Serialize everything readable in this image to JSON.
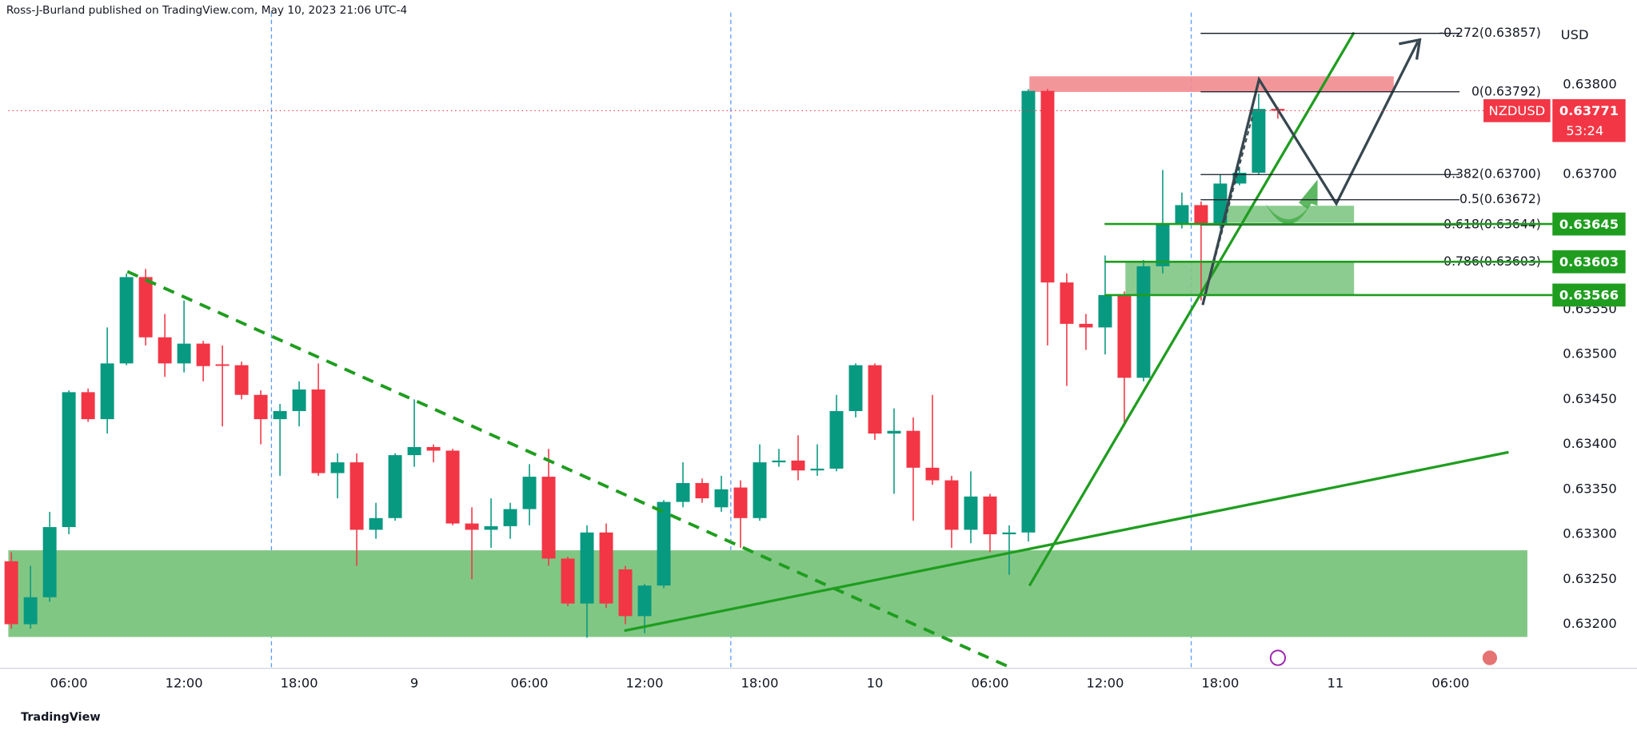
{
  "header": {
    "byline": "Ross-J-Burland published on TradingView.com, May 10, 2023 21:06 UTC-4",
    "brand": "TradingView"
  },
  "chart_data": {
    "type": "candlestick",
    "currency": "USD",
    "x": [
      3,
      4,
      5,
      6,
      7,
      8,
      9,
      10,
      11,
      12,
      13,
      14,
      15,
      16,
      17,
      18,
      19,
      20,
      21,
      22,
      23,
      24,
      25,
      26,
      27,
      28,
      29,
      30,
      31,
      32,
      33,
      34,
      35,
      36,
      37,
      38,
      39,
      40,
      41,
      42,
      43,
      44,
      45,
      46,
      47,
      48,
      49,
      50,
      51,
      52,
      53,
      54,
      55,
      56,
      57,
      58,
      59,
      60,
      61,
      62,
      63,
      64,
      65,
      66,
      67,
      68,
      69
    ],
    "open": [
      0.6327,
      0.632,
      0.6323,
      0.63308,
      0.63458,
      0.63428,
      0.6349,
      0.63586,
      0.63519,
      0.6349,
      0.63512,
      0.63489,
      0.63488,
      0.63455,
      0.63428,
      0.63437,
      0.63461,
      0.63368,
      0.6338,
      0.63305,
      0.63318,
      0.63388,
      0.63397,
      0.63393,
      0.63312,
      0.63305,
      0.63309,
      0.63328,
      0.63364,
      0.63273,
      0.63223,
      0.63302,
      0.63261,
      0.63209,
      0.63243,
      0.63336,
      0.63357,
      0.6333,
      0.63352,
      0.63318,
      0.6338,
      0.63382,
      0.63371,
      0.63373,
      0.63437,
      0.63488,
      0.63412,
      0.63415,
      0.63374,
      0.6336,
      0.63305,
      0.63342,
      0.633,
      0.63302,
      0.63793,
      0.6358,
      0.63534,
      0.6353,
      0.63566,
      0.63474,
      0.63598,
      0.63645,
      0.63666,
      0.63644,
      0.6369,
      0.63702,
      0.63773
    ],
    "high": [
      0.6328,
      0.63265,
      0.63325,
      0.6346,
      0.63462,
      0.6353,
      0.6359,
      0.63595,
      0.63545,
      0.6356,
      0.63515,
      0.6351,
      0.63492,
      0.6346,
      0.63445,
      0.6347,
      0.6349,
      0.6339,
      0.6339,
      0.63335,
      0.6339,
      0.6345,
      0.634,
      0.63395,
      0.6333,
      0.6334,
      0.63335,
      0.63378,
      0.63395,
      0.63275,
      0.6331,
      0.63312,
      0.63265,
      0.63245,
      0.63338,
      0.6338,
      0.63362,
      0.63365,
      0.6336,
      0.634,
      0.63395,
      0.6341,
      0.634,
      0.63455,
      0.6349,
      0.6349,
      0.6344,
      0.6343,
      0.63455,
      0.63365,
      0.6337,
      0.63345,
      0.6331,
      0.63795,
      0.63795,
      0.6359,
      0.63545,
      0.6361,
      0.6357,
      0.63605,
      0.63705,
      0.6368,
      0.6367,
      0.637,
      0.63708,
      0.6379,
      0.63775
    ],
    "low": [
      0.63195,
      0.63195,
      0.63225,
      0.633,
      0.63425,
      0.63412,
      0.63488,
      0.6351,
      0.63475,
      0.6348,
      0.6347,
      0.6342,
      0.6345,
      0.634,
      0.63365,
      0.6342,
      0.63365,
      0.6334,
      0.63265,
      0.63295,
      0.63315,
      0.63375,
      0.6338,
      0.6331,
      0.6325,
      0.63285,
      0.63295,
      0.6331,
      0.63265,
      0.6322,
      0.63185,
      0.63218,
      0.632,
      0.6319,
      0.6324,
      0.6333,
      0.63335,
      0.63325,
      0.63285,
      0.63315,
      0.63375,
      0.6336,
      0.63365,
      0.6337,
      0.6343,
      0.63405,
      0.63345,
      0.63315,
      0.63355,
      0.63285,
      0.6329,
      0.6328,
      0.63255,
      0.63292,
      0.6351,
      0.63465,
      0.63505,
      0.635,
      0.6342,
      0.6347,
      0.6359,
      0.6364,
      0.6356,
      0.6364,
      0.63688,
      0.637,
      0.63762
    ],
    "close": [
      0.632,
      0.6323,
      0.63308,
      0.63458,
      0.63428,
      0.6349,
      0.63586,
      0.63519,
      0.6349,
      0.63512,
      0.63487,
      0.63488,
      0.63455,
      0.63428,
      0.63437,
      0.63461,
      0.63368,
      0.6338,
      0.63305,
      0.63318,
      0.63388,
      0.63397,
      0.63393,
      0.63312,
      0.63305,
      0.63309,
      0.63328,
      0.63364,
      0.63273,
      0.63223,
      0.63302,
      0.63223,
      0.63209,
      0.63243,
      0.63336,
      0.63357,
      0.6334,
      0.6335,
      0.63318,
      0.6338,
      0.63382,
      0.63371,
      0.63373,
      0.63437,
      0.63488,
      0.63412,
      0.63415,
      0.63374,
      0.6336,
      0.63305,
      0.63342,
      0.633,
      0.63302,
      0.63793,
      0.6358,
      0.63534,
      0.6353,
      0.63566,
      0.63474,
      0.63598,
      0.63645,
      0.63666,
      0.63644,
      0.6369,
      0.63702,
      0.63773,
      0.63771
    ],
    "up_color": "#089981",
    "down_color": "#f23645",
    "xlim": [
      2.41,
      83.2
    ],
    "ylim": [
      0.63151,
      0.63894
    ],
    "xticks": [
      {
        "value": 6,
        "label": "06:00"
      },
      {
        "value": 12,
        "label": "12:00"
      },
      {
        "value": 18,
        "label": "18:00"
      },
      {
        "value": 24,
        "label": "9"
      },
      {
        "value": 30,
        "label": "06:00"
      },
      {
        "value": 36,
        "label": "12:00"
      },
      {
        "value": 42,
        "label": "18:00"
      },
      {
        "value": 48,
        "label": "10"
      },
      {
        "value": 54,
        "label": "06:00"
      },
      {
        "value": 60,
        "label": "12:00"
      },
      {
        "value": 66,
        "label": "18:00"
      },
      {
        "value": 72,
        "label": "11"
      },
      {
        "value": 78,
        "label": "06:00"
      }
    ],
    "yticks": [
      {
        "value": 0.632,
        "label": "0.63200"
      },
      {
        "value": 0.6325,
        "label": "0.63250"
      },
      {
        "value": 0.633,
        "label": "0.63300"
      },
      {
        "value": 0.6335,
        "label": "0.63350"
      },
      {
        "value": 0.634,
        "label": "0.63400"
      },
      {
        "value": 0.6345,
        "label": "0.63450"
      },
      {
        "value": 0.635,
        "label": "0.63500"
      },
      {
        "value": 0.6355,
        "label": "0.63550"
      },
      {
        "value": 0.637,
        "label": "0.63700"
      },
      {
        "value": 0.638,
        "label": "0.63800"
      }
    ],
    "fib_levels": [
      {
        "value": 0.63857,
        "label": "-0.272(0.63857)"
      },
      {
        "value": 0.63792,
        "label": "0(0.63792)"
      },
      {
        "value": 0.637,
        "label": "0.382(0.63700)"
      },
      {
        "value": 0.63672,
        "label": "0.5(0.63672)"
      },
      {
        "value": 0.63644,
        "label": "0.618(0.63644)"
      },
      {
        "value": 0.63603,
        "label": "0.786(0.63603)"
      }
    ],
    "price_labels": [
      {
        "value": 0.63645,
        "label": "0.63645"
      },
      {
        "value": 0.63603,
        "label": "0.63603"
      },
      {
        "value": 0.63566,
        "label": "0.63566"
      }
    ],
    "level_color": "#1f9d1f",
    "last_price": {
      "symbol": "NZDUSD",
      "value": 0.63771,
      "label": "0.63771",
      "countdown": "53:24"
    }
  }
}
